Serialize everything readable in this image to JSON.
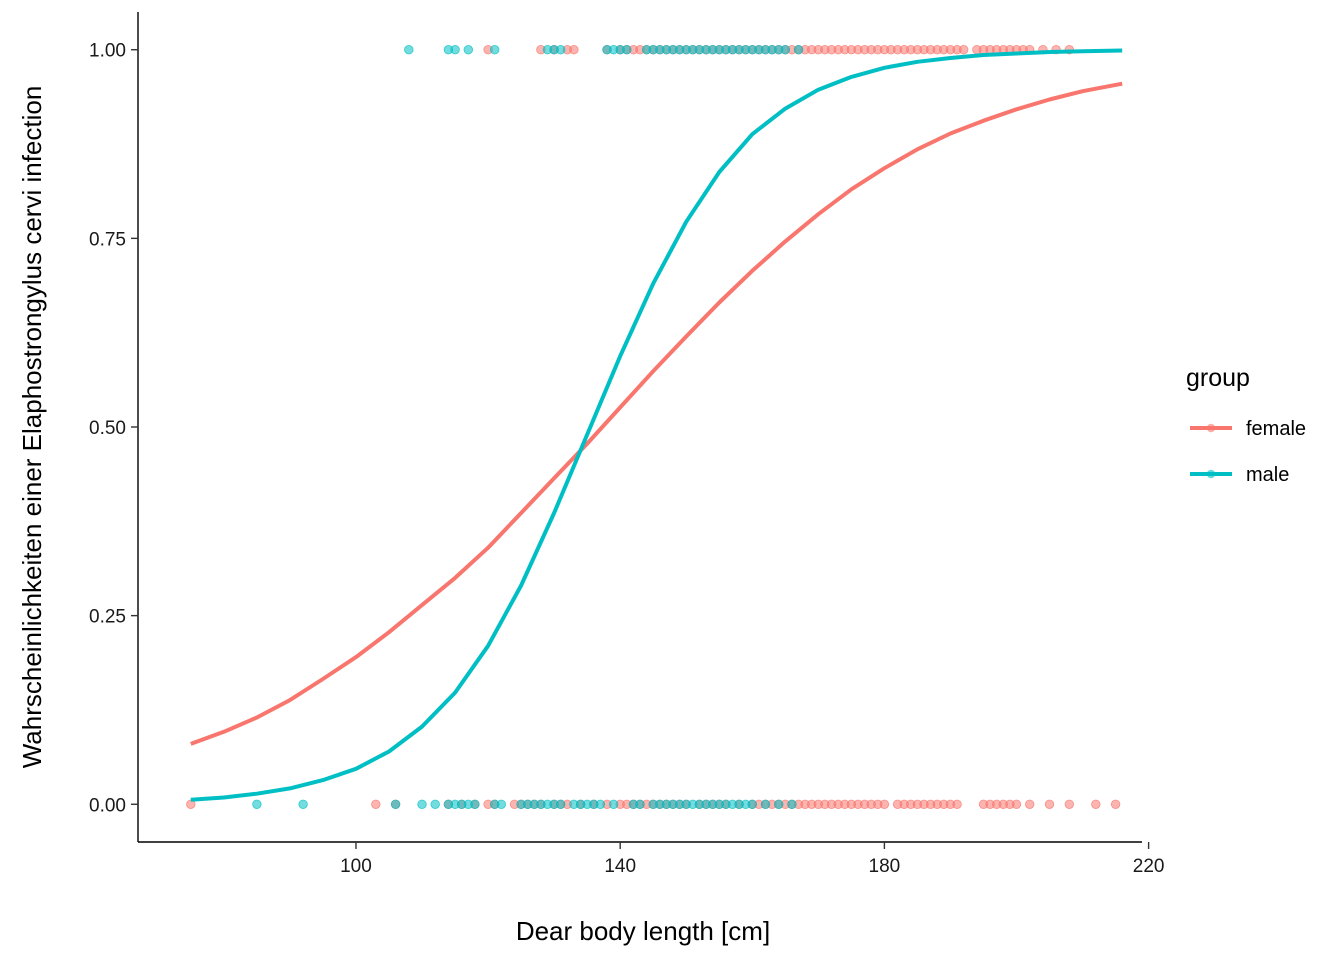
{
  "chart_data": {
    "type": "scatter",
    "xlabel": "Dear body length [cm]",
    "ylabel": "Wahrscheinlichkeiten einer Elaphostrongylus cervi infection",
    "xlim": [
      67,
      219
    ],
    "ylim": [
      -0.05,
      1.05
    ],
    "x_ticks": [
      100,
      140,
      180,
      220
    ],
    "x_tick_labels": [
      "100",
      "140",
      "180",
      "220"
    ],
    "y_ticks": [
      0,
      0.25,
      0.5,
      0.75,
      1.0
    ],
    "y_tick_labels": [
      "0.00",
      "0.25",
      "0.50",
      "0.75",
      "1.00"
    ],
    "grid": false,
    "legend": {
      "title": "group",
      "position": "right"
    },
    "series": [
      {
        "name": "female",
        "color": "#F8766D",
        "curve": {
          "x": [
            75,
            80,
            85,
            90,
            95,
            100,
            105,
            110,
            115,
            120,
            125,
            130,
            135,
            140,
            145,
            150,
            155,
            160,
            165,
            170,
            175,
            180,
            185,
            190,
            195,
            200,
            205,
            210,
            216
          ],
          "y": [
            0.08,
            0.096,
            0.115,
            0.138,
            0.166,
            0.195,
            0.228,
            0.264,
            0.3,
            0.34,
            0.386,
            0.432,
            0.478,
            0.526,
            0.574,
            0.62,
            0.665,
            0.707,
            0.746,
            0.782,
            0.815,
            0.843,
            0.868,
            0.889,
            0.906,
            0.921,
            0.934,
            0.945,
            0.955
          ]
        },
        "points_at_1": [
          120,
          128,
          130,
          132,
          133,
          138,
          140,
          141,
          142,
          143,
          144,
          145,
          146,
          147,
          148,
          149,
          150,
          151,
          152,
          153,
          154,
          155,
          156,
          157,
          158,
          159,
          160,
          161,
          162,
          163,
          164,
          165,
          166,
          167,
          168,
          169,
          170,
          171,
          172,
          173,
          174,
          175,
          176,
          177,
          178,
          179,
          180,
          181,
          182,
          183,
          184,
          185,
          186,
          187,
          188,
          189,
          190,
          191,
          192,
          194,
          195,
          196,
          197,
          198,
          199,
          200,
          201,
          202,
          204,
          206,
          208
        ],
        "points_at_0": [
          75,
          103,
          106,
          114,
          116,
          118,
          120,
          121,
          124,
          125,
          126,
          127,
          128,
          130,
          131,
          132,
          134,
          136,
          138,
          140,
          141,
          142,
          143,
          144,
          145,
          146,
          147,
          148,
          149,
          150,
          152,
          153,
          154,
          155,
          156,
          158,
          160,
          161,
          162,
          163,
          164,
          165,
          166,
          167,
          168,
          169,
          170,
          171,
          172,
          173,
          174,
          175,
          176,
          177,
          178,
          179,
          180,
          182,
          183,
          184,
          185,
          186,
          187,
          188,
          189,
          190,
          191,
          195,
          196,
          197,
          198,
          199,
          200,
          202,
          205,
          208,
          212,
          215
        ]
      },
      {
        "name": "male",
        "color": "#00BFC4",
        "curve": {
          "x": [
            75,
            80,
            85,
            90,
            95,
            100,
            105,
            110,
            115,
            120,
            125,
            130,
            135,
            140,
            145,
            150,
            155,
            160,
            165,
            170,
            175,
            180,
            185,
            190,
            195,
            200,
            205,
            210,
            216
          ],
          "y": [
            0.006,
            0.009,
            0.014,
            0.021,
            0.032,
            0.047,
            0.07,
            0.103,
            0.148,
            0.21,
            0.29,
            0.386,
            0.49,
            0.594,
            0.69,
            0.772,
            0.838,
            0.888,
            0.922,
            0.947,
            0.964,
            0.976,
            0.984,
            0.989,
            0.993,
            0.995,
            0.997,
            0.998,
            0.999
          ]
        },
        "points_at_1": [
          108,
          114,
          115,
          117,
          121,
          129,
          130,
          131,
          138,
          139,
          140,
          141,
          144,
          145,
          146,
          147,
          148,
          149,
          150,
          151,
          152,
          153,
          154,
          155,
          156,
          157,
          158,
          159,
          160,
          161,
          162,
          163,
          164,
          165,
          167
        ],
        "points_at_0": [
          85,
          92,
          106,
          110,
          112,
          114,
          115,
          116,
          117,
          118,
          121,
          122,
          125,
          126,
          127,
          128,
          129,
          130,
          131,
          133,
          134,
          135,
          136,
          137,
          139,
          142,
          143,
          145,
          146,
          147,
          148,
          149,
          150,
          151,
          152,
          153,
          154,
          155,
          156,
          157,
          158,
          159,
          160,
          162,
          164,
          166
        ]
      }
    ]
  }
}
